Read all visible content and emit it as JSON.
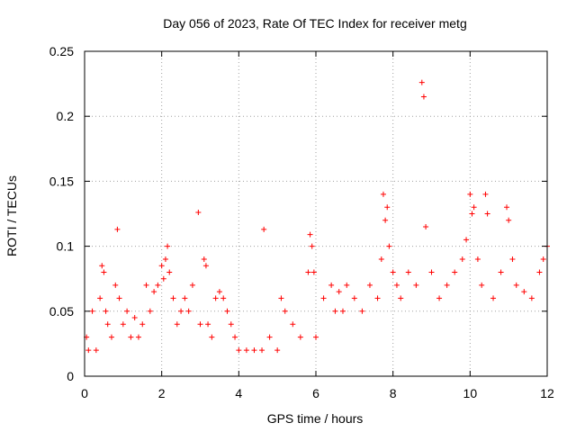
{
  "chart_data": {
    "type": "scatter",
    "title": "Day 056 of 2023, Rate Of TEC Index for receiver metg",
    "xlabel": "GPS time / hours",
    "ylabel": "ROTI / TECUs",
    "xlim": [
      0,
      12
    ],
    "ylim": [
      0,
      0.25
    ],
    "xticks": [
      0,
      2,
      4,
      6,
      8,
      10,
      12
    ],
    "xtick_labels": [
      "0",
      "2",
      "4",
      "6",
      "8",
      "10",
      "12"
    ],
    "yticks": [
      0,
      0.05,
      0.1,
      0.15,
      0.2,
      0.25
    ],
    "ytick_labels": [
      "0",
      "0.05",
      "0.1",
      "0.15",
      "0.2",
      "0.25"
    ],
    "grid": true,
    "marker": "+",
    "series_color": "#ff0000",
    "series": [
      {
        "name": "ROTI",
        "x": [
          0.05,
          0.1,
          0.2,
          0.3,
          0.4,
          0.45,
          0.5,
          0.55,
          0.6,
          0.7,
          0.8,
          0.85,
          0.9,
          1.0,
          1.1,
          1.2,
          1.3,
          1.4,
          1.5,
          1.6,
          1.7,
          1.8,
          1.9,
          2.0,
          2.05,
          2.1,
          2.15,
          2.2,
          2.3,
          2.4,
          2.5,
          2.6,
          2.7,
          2.8,
          2.95,
          3.0,
          3.1,
          3.15,
          3.2,
          3.3,
          3.4,
          3.5,
          3.6,
          3.7,
          3.8,
          3.9,
          4.0,
          4.2,
          4.4,
          4.6,
          4.65,
          4.8,
          5.0,
          5.1,
          5.2,
          5.4,
          5.6,
          5.8,
          5.85,
          5.9,
          5.95,
          6.0,
          6.2,
          6.4,
          6.5,
          6.6,
          6.7,
          6.8,
          7.0,
          7.2,
          7.4,
          7.6,
          7.7,
          7.75,
          7.8,
          7.85,
          7.9,
          8.0,
          8.1,
          8.2,
          8.4,
          8.6,
          8.75,
          8.8,
          8.85,
          9.0,
          9.2,
          9.4,
          9.6,
          9.8,
          9.9,
          10.0,
          10.05,
          10.1,
          10.2,
          10.3,
          10.4,
          10.45,
          10.6,
          10.8,
          10.95,
          11.0,
          11.1,
          11.2,
          11.4,
          11.6,
          11.8,
          11.9,
          12.0
        ],
        "y": [
          0.03,
          0.02,
          0.05,
          0.02,
          0.06,
          0.085,
          0.08,
          0.05,
          0.04,
          0.03,
          0.07,
          0.113,
          0.06,
          0.04,
          0.05,
          0.03,
          0.045,
          0.03,
          0.04,
          0.07,
          0.05,
          0.065,
          0.07,
          0.085,
          0.075,
          0.09,
          0.1,
          0.08,
          0.06,
          0.04,
          0.05,
          0.06,
          0.05,
          0.07,
          0.126,
          0.04,
          0.09,
          0.085,
          0.04,
          0.03,
          0.06,
          0.065,
          0.06,
          0.05,
          0.04,
          0.03,
          0.02,
          0.02,
          0.02,
          0.02,
          0.113,
          0.03,
          0.02,
          0.06,
          0.05,
          0.04,
          0.03,
          0.08,
          0.109,
          0.1,
          0.08,
          0.03,
          0.06,
          0.07,
          0.05,
          0.065,
          0.05,
          0.07,
          0.06,
          0.05,
          0.07,
          0.06,
          0.09,
          0.14,
          0.12,
          0.13,
          0.1,
          0.08,
          0.07,
          0.06,
          0.08,
          0.07,
          0.226,
          0.215,
          0.115,
          0.08,
          0.06,
          0.07,
          0.08,
          0.09,
          0.105,
          0.14,
          0.125,
          0.13,
          0.09,
          0.07,
          0.14,
          0.125,
          0.06,
          0.08,
          0.13,
          0.12,
          0.09,
          0.07,
          0.065,
          0.06,
          0.08,
          0.09,
          0.1
        ]
      }
    ]
  }
}
